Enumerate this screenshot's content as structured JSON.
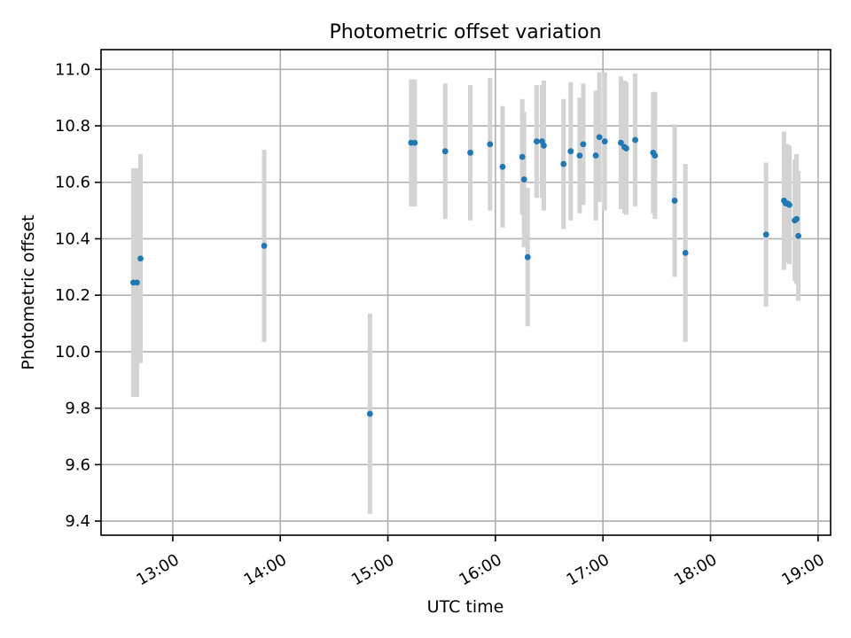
{
  "chart_data": {
    "type": "scatter",
    "title": "Photometric offset variation",
    "xlabel": "UTC time",
    "ylabel": "Photometric offset",
    "x_unit": "time of day (UTC)",
    "xlim": [
      "12:20",
      "19:07"
    ],
    "ylim": [
      9.35,
      11.07
    ],
    "xticks": [
      "13:00",
      "14:00",
      "15:00",
      "16:00",
      "17:00",
      "18:00",
      "19:00"
    ],
    "yticks": [
      "9.4",
      "9.6",
      "9.8",
      "10.0",
      "10.2",
      "10.4",
      "10.6",
      "10.8",
      "11.0"
    ],
    "grid": true,
    "point_color": "#1f77b4",
    "errorbar_color": "#d3d3d3",
    "series": [
      {
        "points": [
          {
            "x": "12:38",
            "y": 10.245,
            "err": 0.405
          },
          {
            "x": "12:40",
            "y": 10.245,
            "err": 0.405
          },
          {
            "x": "12:42",
            "y": 10.33,
            "err": 0.37
          },
          {
            "x": "13:51",
            "y": 10.375,
            "err": 0.34
          },
          {
            "x": "14:50",
            "y": 9.78,
            "err": 0.355
          },
          {
            "x": "15:13",
            "y": 10.74,
            "err": 0.225
          },
          {
            "x": "15:15",
            "y": 10.74,
            "err": 0.225
          },
          {
            "x": "15:32",
            "y": 10.71,
            "err": 0.24
          },
          {
            "x": "15:46",
            "y": 10.705,
            "err": 0.24
          },
          {
            "x": "15:57",
            "y": 10.735,
            "err": 0.235
          },
          {
            "x": "16:04",
            "y": 10.655,
            "err": 0.215
          },
          {
            "x": "16:15",
            "y": 10.69,
            "err": 0.205
          },
          {
            "x": "16:16",
            "y": 10.61,
            "err": 0.24
          },
          {
            "x": "16:18",
            "y": 10.335,
            "err": 0.245
          },
          {
            "x": "16:23",
            "y": 10.745,
            "err": 0.2
          },
          {
            "x": "16:26",
            "y": 10.745,
            "err": 0.2
          },
          {
            "x": "16:27",
            "y": 10.73,
            "err": 0.23
          },
          {
            "x": "16:38",
            "y": 10.665,
            "err": 0.23
          },
          {
            "x": "16:42",
            "y": 10.71,
            "err": 0.245
          },
          {
            "x": "16:47",
            "y": 10.695,
            "err": 0.205
          },
          {
            "x": "16:49",
            "y": 10.735,
            "err": 0.215
          },
          {
            "x": "16:56",
            "y": 10.695,
            "err": 0.23
          },
          {
            "x": "16:58",
            "y": 10.76,
            "err": 0.23
          },
          {
            "x": "17:01",
            "y": 10.745,
            "err": 0.245
          },
          {
            "x": "17:10",
            "y": 10.74,
            "err": 0.235
          },
          {
            "x": "17:12",
            "y": 10.725,
            "err": 0.235
          },
          {
            "x": "17:13",
            "y": 10.72,
            "err": 0.235
          },
          {
            "x": "17:18",
            "y": 10.75,
            "err": 0.235
          },
          {
            "x": "17:28",
            "y": 10.705,
            "err": 0.215
          },
          {
            "x": "17:29",
            "y": 10.695,
            "err": 0.225
          },
          {
            "x": "17:40",
            "y": 10.535,
            "err": 0.27
          },
          {
            "x": "17:46",
            "y": 10.35,
            "err": 0.315
          },
          {
            "x": "18:31",
            "y": 10.415,
            "err": 0.255
          },
          {
            "x": "18:41",
            "y": 10.535,
            "err": 0.245
          },
          {
            "x": "18:42",
            "y": 10.525,
            "err": 0.21
          },
          {
            "x": "18:43",
            "y": 10.525,
            "err": 0.21
          },
          {
            "x": "18:44",
            "y": 10.52,
            "err": 0.21
          },
          {
            "x": "18:47",
            "y": 10.465,
            "err": 0.215
          },
          {
            "x": "18:48",
            "y": 10.47,
            "err": 0.23
          },
          {
            "x": "18:49",
            "y": 10.41,
            "err": 0.23
          }
        ]
      }
    ]
  }
}
